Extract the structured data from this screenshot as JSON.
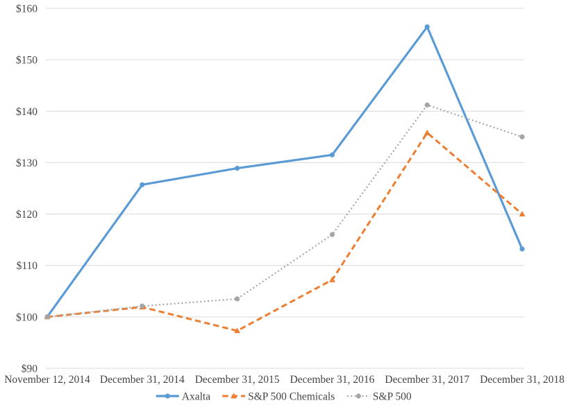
{
  "chart_data": {
    "type": "line",
    "title": "",
    "categories": [
      "November 12, 2014",
      "December 31, 2014",
      "December 31, 2015",
      "December 31, 2016",
      "December 31, 2017",
      "December 31, 2018"
    ],
    "series": [
      {
        "name": "Axalta",
        "color": "#5B9BD5",
        "line_style": "solid",
        "marker": "circle",
        "values": [
          100,
          125.7,
          128.9,
          131.5,
          156.4,
          113.2
        ]
      },
      {
        "name": "S&P 500 Chemicals",
        "color": "#ED7D31",
        "line_style": "dashed",
        "marker": "triangle",
        "values": [
          100,
          101.9,
          97.3,
          107.2,
          135.8,
          120.0
        ]
      },
      {
        "name": "S&P 500",
        "color": "#A5A5A5",
        "line_style": "dotted",
        "marker": "circle",
        "values": [
          100,
          102.1,
          103.5,
          116.0,
          141.2,
          135.0
        ]
      }
    ],
    "xlabel": "",
    "ylabel": "",
    "ylim": [
      90,
      160
    ],
    "ytick_step": 10,
    "ytick_format": "$",
    "grid": true,
    "legend_position": "bottom",
    "gridline_color": "#D9D9D9",
    "text_color": "#444444"
  }
}
